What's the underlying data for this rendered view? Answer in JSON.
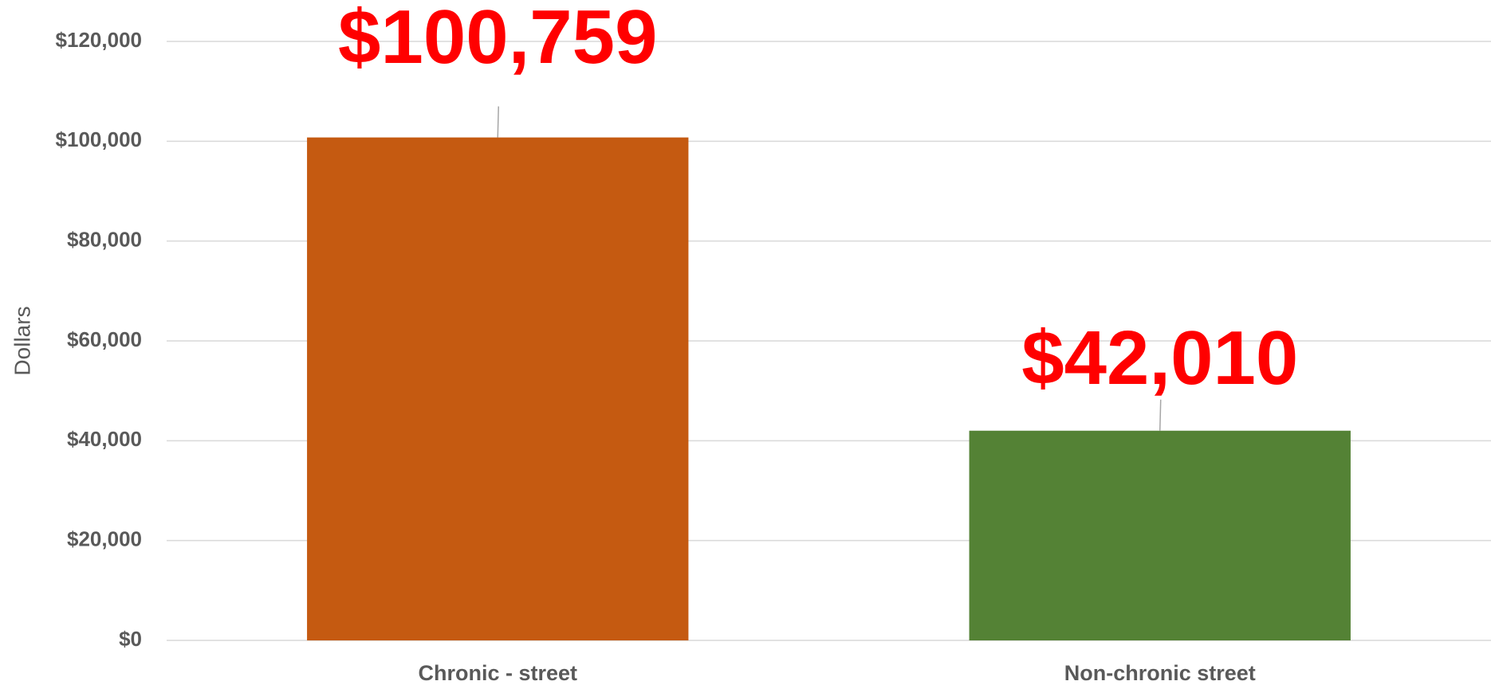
{
  "chart_data": {
    "type": "bar",
    "y_label": "Dollars",
    "categories": [
      "Chronic - street",
      "Non-chronic street"
    ],
    "values": [
      100759,
      42010
    ],
    "value_labels": [
      "$100,759",
      "$42,010"
    ],
    "colors": [
      "#c55a11",
      "#548235"
    ],
    "label_color": "#ff0000",
    "ylim": [
      0,
      120000
    ],
    "yticks": [
      {
        "value": 0,
        "label": "$0"
      },
      {
        "value": 20000,
        "label": "$20,000"
      },
      {
        "value": 40000,
        "label": "$40,000"
      },
      {
        "value": 60000,
        "label": "$60,000"
      },
      {
        "value": 80000,
        "label": "$80,000"
      },
      {
        "value": 100000,
        "label": "$100,000"
      },
      {
        "value": 120000,
        "label": "$120,000"
      }
    ],
    "grid": true
  }
}
